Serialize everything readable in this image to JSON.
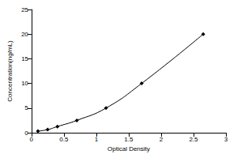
{
  "chart_data": {
    "type": "line",
    "x_label": "Optical Density",
    "y_label": "Concentration(ng/mL)",
    "x": [
      0.1,
      0.25,
      0.4,
      0.7,
      1.15,
      1.7,
      2.65
    ],
    "values": [
      0.31,
      0.63,
      1.25,
      2.5,
      5,
      10,
      20
    ],
    "color": "#000000",
    "marker": "diamond",
    "line_style": "solid",
    "xlim": [
      0,
      3
    ],
    "xticks": [
      0,
      0.5,
      1,
      1.5,
      2,
      2.5,
      3
    ],
    "ylim": [
      0,
      25
    ],
    "yticks": [
      0,
      5,
      10,
      15,
      20,
      25
    ],
    "grid": false
  }
}
